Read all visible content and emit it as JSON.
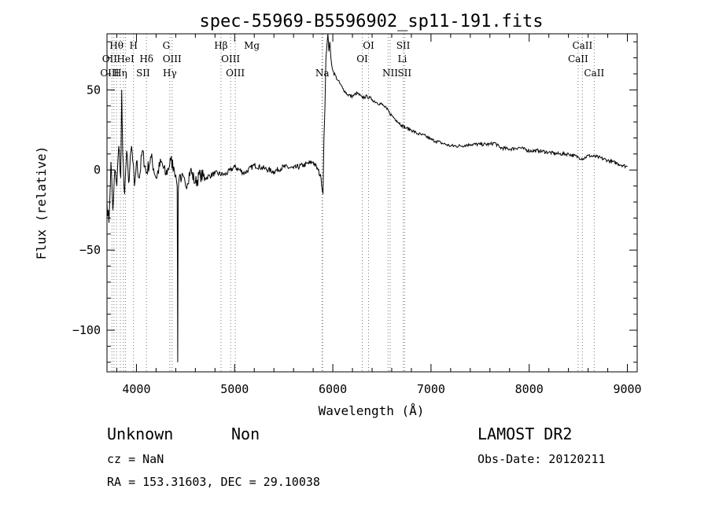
{
  "chart_data": {
    "type": "line",
    "title": "spec-55969-B5596902_sp11-191.fits",
    "xlabel": "Wavelength (Å)",
    "ylabel": "Flux (relative)",
    "xlim": [
      3700,
      9100
    ],
    "ylim": [
      -126,
      85
    ],
    "xticks": [
      4000,
      5000,
      6000,
      7000,
      8000,
      9000
    ],
    "yticks": [
      -100,
      -50,
      0,
      50
    ],
    "ytick_labels": [
      "−100",
      "−50",
      "0",
      "50"
    ],
    "series": [
      {
        "x": [
          3700,
          3720,
          3740,
          3760,
          3780,
          3800,
          3820,
          3840,
          3850,
          3860,
          3880,
          3900,
          3920,
          3950,
          3980,
          4000,
          4030,
          4060,
          4100,
          4150,
          4200,
          4250,
          4300,
          4350,
          4380,
          4400,
          4415,
          4420,
          4425,
          4430,
          4440,
          4460,
          4500,
          4550,
          4600,
          4650,
          4700,
          4800,
          4900,
          5000,
          5100,
          5200,
          5300,
          5400,
          5500,
          5600,
          5700,
          5800,
          5850,
          5880,
          5900,
          5910,
          5920,
          5930,
          5940,
          5950,
          5960,
          5970,
          5980,
          6000,
          6050,
          6100,
          6150,
          6200,
          6250,
          6300,
          6350,
          6400,
          6450,
          6500,
          6550,
          6600,
          6650,
          6700,
          6750,
          6800,
          6850,
          6900,
          6950,
          7000,
          7050,
          7100,
          7150,
          7200,
          7300,
          7400,
          7500,
          7600,
          7650,
          7700,
          7800,
          7900,
          8000,
          8100,
          8200,
          8300,
          8400,
          8500,
          8550,
          8600,
          8700,
          8800,
          8900,
          9000
        ],
        "y": [
          -20,
          -33,
          5,
          -25,
          0,
          -10,
          15,
          -5,
          50,
          10,
          -15,
          12,
          -8,
          15,
          -10,
          5,
          -5,
          12,
          -2,
          8,
          -5,
          5,
          -3,
          6,
          2,
          -3,
          -10,
          -120,
          -15,
          -8,
          -3,
          -5,
          -10,
          0,
          -8,
          -3,
          -5,
          -2,
          -3,
          2,
          -2,
          3,
          1,
          -1,
          2,
          1,
          3,
          5,
          0,
          -5,
          -15,
          20,
          40,
          70,
          78,
          85,
          74,
          80,
          70,
          62,
          56,
          51,
          47,
          46,
          48,
          45,
          46,
          44,
          42,
          41,
          38,
          34,
          31,
          28,
          26,
          25,
          23,
          22,
          21,
          19,
          18,
          17,
          16,
          15,
          15,
          16,
          16,
          16,
          17,
          14,
          13,
          14,
          12,
          12,
          11,
          10,
          10,
          8,
          7,
          9,
          8,
          6,
          4,
          2
        ]
      }
    ],
    "spectral_lines": [
      {
        "name": "Hθ",
        "x": 3797,
        "row": 0
      },
      {
        "name": "H",
        "x": 3970,
        "row": 0
      },
      {
        "name": "G",
        "x": 4304,
        "row": 0
      },
      {
        "name": "Hβ",
        "x": 4861,
        "row": 0
      },
      {
        "name": "Mg",
        "x": 5175,
        "row": 0
      },
      {
        "name": "OI",
        "x": 6364,
        "row": 0
      },
      {
        "name": "SII",
        "x": 6717,
        "row": 0
      },
      {
        "name": "CaII",
        "x": 8542,
        "row": 0
      },
      {
        "name": "OII",
        "x": 3727,
        "row": 1
      },
      {
        "name": "HeI",
        "x": 3889,
        "row": 1
      },
      {
        "name": "Hδ",
        "x": 4102,
        "row": 1
      },
      {
        "name": "OIII",
        "x": 4363,
        "row": 1
      },
      {
        "name": "OIII",
        "x": 4959,
        "row": 1
      },
      {
        "name": "OI",
        "x": 6300,
        "row": 1
      },
      {
        "name": "Li",
        "x": 6708,
        "row": 1
      },
      {
        "name": "CaII",
        "x": 8498,
        "row": 1
      },
      {
        "name": "OIII",
        "x": 3727,
        "row": 2
      },
      {
        "name": "Hη",
        "x": 3835,
        "row": 2
      },
      {
        "name": "SII",
        "x": 4068,
        "row": 2
      },
      {
        "name": "Hγ",
        "x": 4340,
        "row": 2
      },
      {
        "name": "OIII",
        "x": 5007,
        "row": 2
      },
      {
        "name": "Na",
        "x": 5893,
        "row": 2
      },
      {
        "name": "NII",
        "x": 6584,
        "row": 2
      },
      {
        "name": "SII",
        "x": 6731,
        "row": 2
      },
      {
        "name": "CaII",
        "x": 8662,
        "row": 2
      }
    ],
    "extra_dotted_lines": [
      3750,
      3771,
      3798,
      3836,
      3868,
      3889,
      3970,
      4102,
      4340,
      4363,
      4861,
      4959,
      5007,
      5890,
      5896,
      6300,
      6364,
      6563,
      6584,
      6717,
      6731,
      8498,
      8542,
      8662
    ],
    "grid": false
  },
  "footer": {
    "object_class": "Unknown",
    "subclass": "Non",
    "survey": "LAMOST DR2",
    "cz": "cz = NaN",
    "obs_date": "Obs-Date: 20120211",
    "coords": "RA = 153.31603, DEC =  29.10038"
  },
  "colors": {
    "line": "#000000",
    "dotted": "#777777"
  }
}
